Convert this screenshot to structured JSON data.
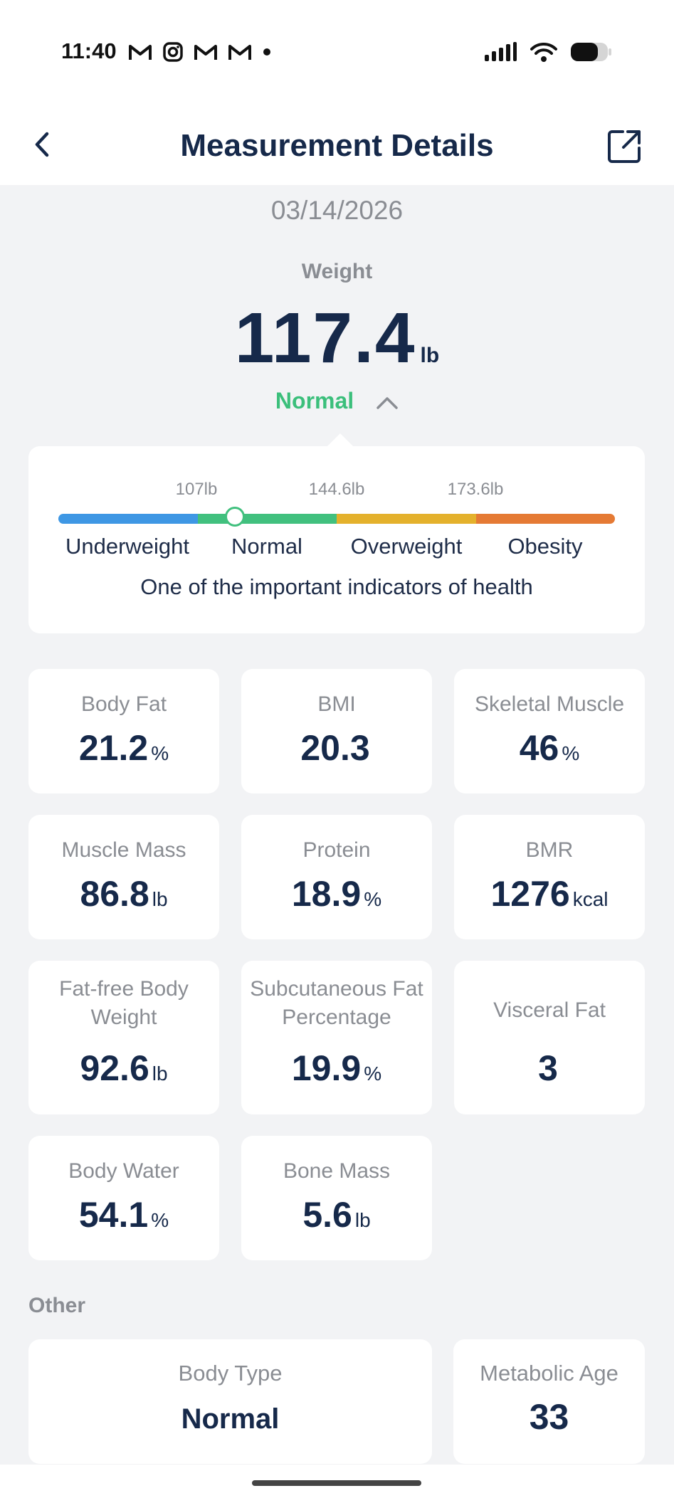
{
  "status_bar": {
    "time": "11:40",
    "left_icons": [
      "gmail-icon",
      "instagram-icon",
      "gmail-icon",
      "gmail-icon",
      "dot-icon"
    ],
    "right_icons": [
      "signal-icon",
      "wifi-icon",
      "battery-icon"
    ]
  },
  "header": {
    "title": "Measurement Details",
    "back_icon": "chevron-left-icon",
    "share_icon": "share-external-icon"
  },
  "summary": {
    "date": "03/14/2026",
    "weight_label": "Weight",
    "weight_value": "117.4",
    "weight_unit": "lb",
    "status": "Normal",
    "status_color": "#3bbf7b"
  },
  "range": {
    "thresholds": [
      "107lb",
      "144.6lb",
      "173.6lb"
    ],
    "categories": [
      "Underweight",
      "Normal",
      "Overweight",
      "Obesity"
    ],
    "category_colors": [
      "#3e97e4",
      "#41c07e",
      "#e4b12c",
      "#e57a34"
    ],
    "marker_fraction": 0.317,
    "note": "One of the important indicators of health"
  },
  "metrics": [
    {
      "label": "Body Fat",
      "value": "21.2",
      "unit": "%"
    },
    {
      "label": "BMI",
      "value": "20.3",
      "unit": ""
    },
    {
      "label": "Skeletal Muscle",
      "value": "46",
      "unit": "%"
    },
    {
      "label": "Muscle Mass",
      "value": "86.8",
      "unit": "lb"
    },
    {
      "label": "Protein",
      "value": "18.9",
      "unit": "%"
    },
    {
      "label": "BMR",
      "value": "1276",
      "unit": "kcal"
    },
    {
      "label": "Fat-free Body Weight",
      "value": "92.6",
      "unit": "lb"
    },
    {
      "label": "Subcutaneous Fat Percentage",
      "value": "19.9",
      "unit": "%"
    },
    {
      "label": "Visceral Fat",
      "value": "3",
      "unit": ""
    },
    {
      "label": "Body Water",
      "value": "54.1",
      "unit": "%"
    },
    {
      "label": "Bone Mass",
      "value": "5.6",
      "unit": "lb"
    }
  ],
  "other": {
    "section_title": "Other",
    "body_type_label": "Body Type",
    "body_type_value": "Normal",
    "metabolic_age_label": "Metabolic Age",
    "metabolic_age_value": "33"
  }
}
